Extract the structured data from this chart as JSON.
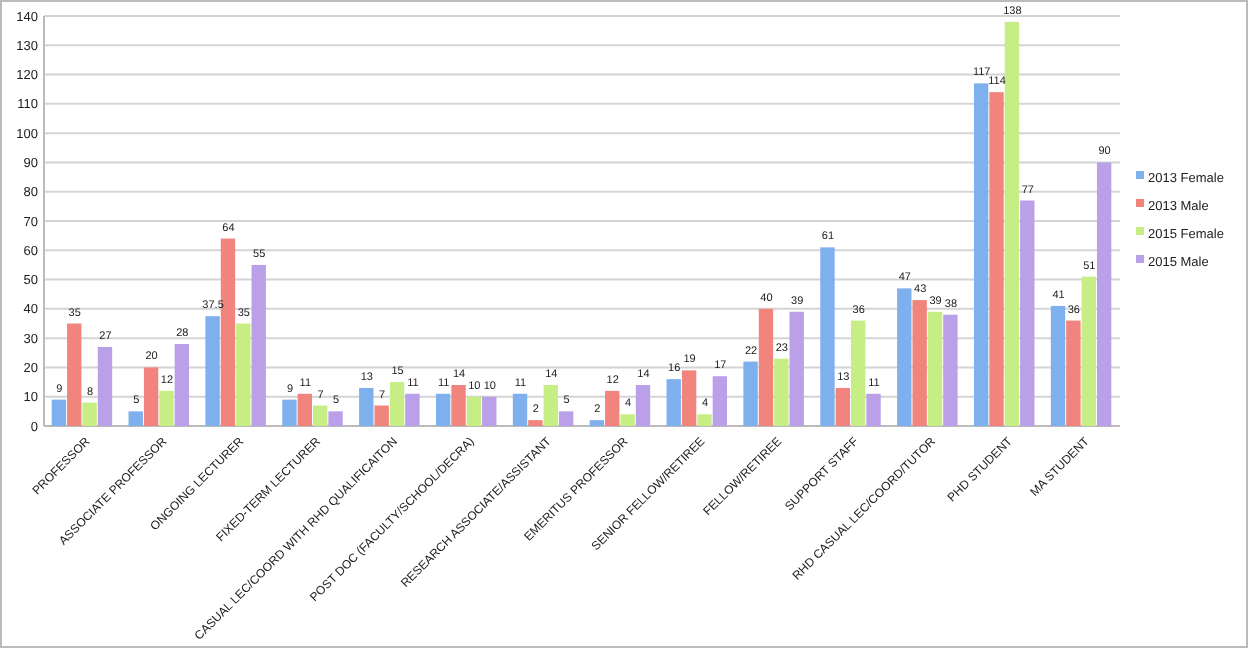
{
  "chart_data": {
    "type": "bar",
    "categories": [
      "PROFESSOR",
      "ASSOCIATE PROFESSOR",
      "ONGOING LECTURER",
      "FIXED-TERM LECTURER",
      "CASUAL LEC/COORD WITH RHD QUALIFICAITON",
      "POST DOC (FACULTY/SCHOOL/DECRA)",
      "RESEARCH ASSOCIATE/ASSISTANT",
      "EMERITUS PROFESSOR",
      "SENIOR FELLOW/RETIREE",
      "FELLOW/RETIREE",
      "SUPPORT STAFF",
      "RHD CASUAL LEC/COORD/TUTOR",
      "PHD STUDENT",
      "MA STUDENT"
    ],
    "series": [
      {
        "name": "2013 Female",
        "color": "#7fb0ee",
        "values": [
          9,
          5,
          37.5,
          9,
          13,
          11,
          11,
          2,
          16,
          22,
          61,
          47,
          117,
          41
        ]
      },
      {
        "name": "2013 Male",
        "color": "#f2847e",
        "values": [
          35,
          20,
          64,
          11,
          7,
          14,
          2,
          12,
          19,
          40,
          13,
          43,
          114,
          36
        ]
      },
      {
        "name": "2015 Female",
        "color": "#c6ee84",
        "values": [
          8,
          12,
          35,
          7,
          15,
          10,
          14,
          4,
          4,
          23,
          36,
          39,
          138,
          51
        ]
      },
      {
        "name": "2015 Male",
        "color": "#b9a0e8",
        "values": [
          27,
          28,
          55,
          5,
          11,
          10,
          5,
          14,
          17,
          39,
          11,
          38,
          77,
          90
        ]
      }
    ],
    "ylim": [
      0,
      140
    ],
    "yticks": [
      0,
      10,
      20,
      30,
      40,
      50,
      60,
      70,
      80,
      90,
      100,
      110,
      120,
      130,
      140
    ],
    "grid": "y",
    "legend": "right",
    "data_labels": true
  }
}
